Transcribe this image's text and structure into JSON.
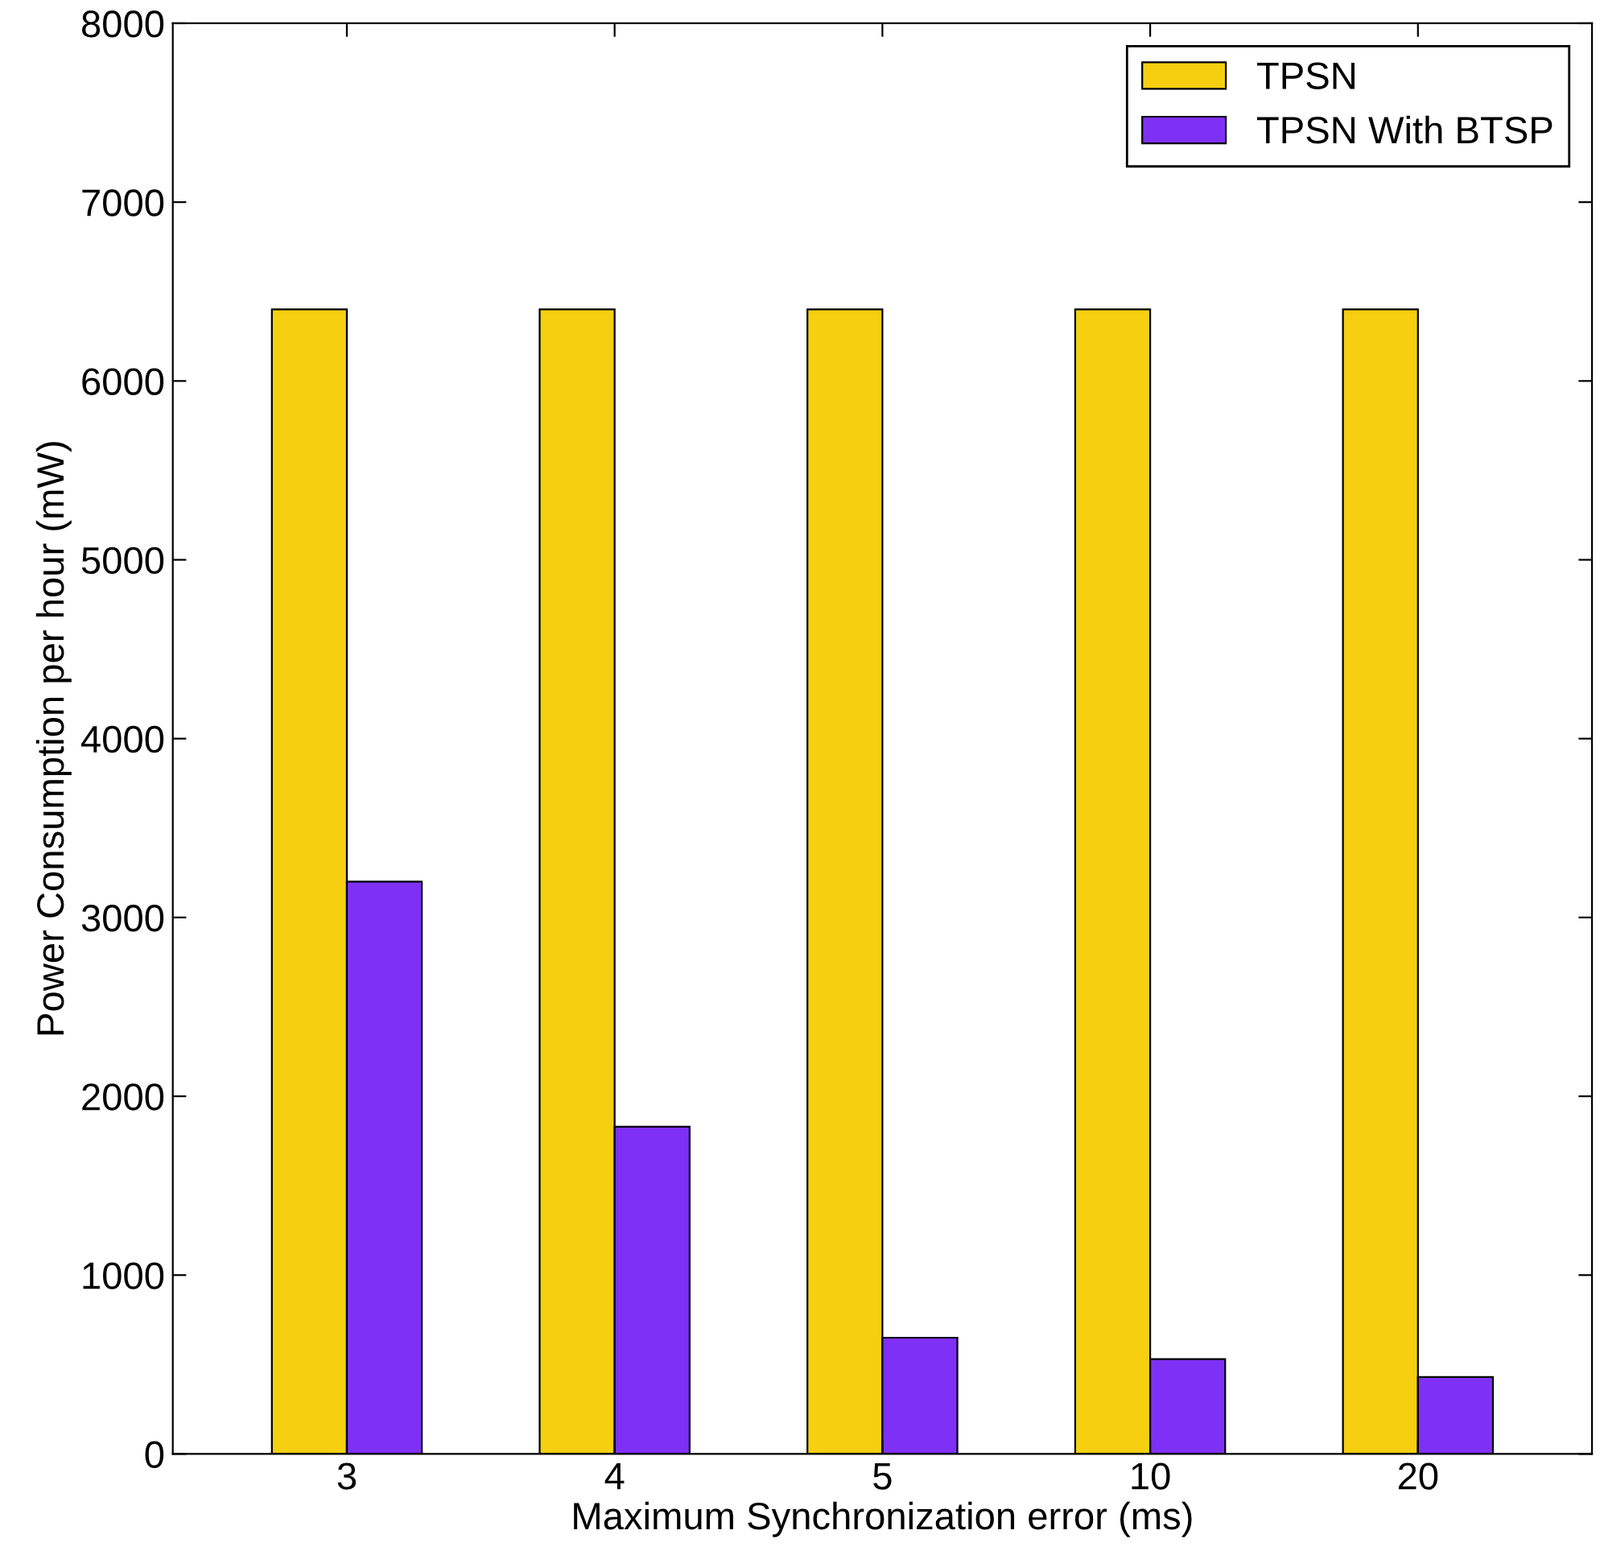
{
  "chart_data": {
    "type": "bar",
    "xlabel": "Maximum Synchronization error (ms)",
    "ylabel": "Power Consumption per hour (mW)",
    "categories": [
      "3",
      "4",
      "5",
      "10",
      "20"
    ],
    "series": [
      {
        "name": "TPSN",
        "color": "#f5cf10",
        "values": [
          6400,
          6400,
          6400,
          6400,
          6400
        ]
      },
      {
        "name": "TPSN With BTSP",
        "color": "#7f30f5",
        "values": [
          3200,
          1830,
          650,
          530,
          430
        ]
      }
    ],
    "ylim": [
      0,
      8000
    ],
    "yticks": [
      0,
      1000,
      2000,
      3000,
      4000,
      5000,
      6000,
      7000,
      8000
    ],
    "grid": false,
    "legend": "top right"
  }
}
